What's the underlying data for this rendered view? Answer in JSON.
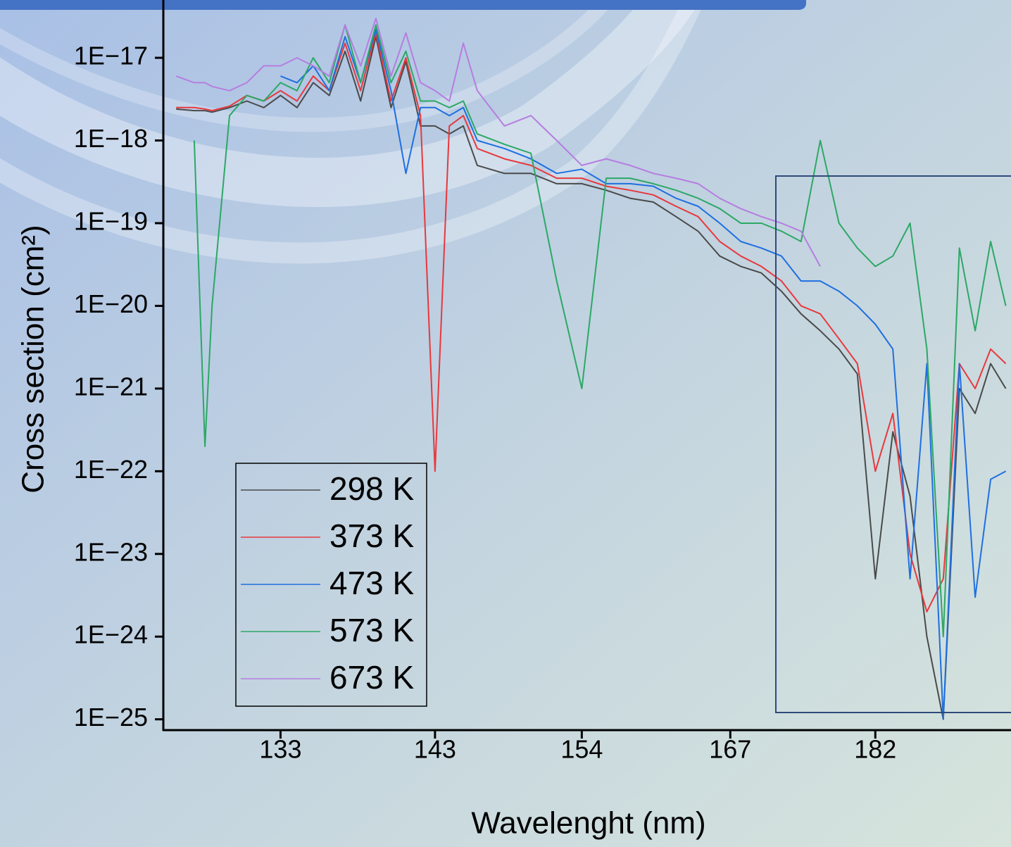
{
  "chart_data": {
    "type": "line",
    "x_label": "Wavelenght (nm)",
    "y_label": "Cross section (cm²)",
    "xscale": "reciprocal",
    "yscale": "log",
    "legend": "lower left",
    "xlim": [
      126.3,
      198.7
    ],
    "xticks": [
      133,
      143,
      154,
      167,
      182
    ],
    "ylim": [
      7.4e-26,
      5e-17
    ],
    "yticks": [
      {
        "value": 1e-17,
        "label": "1E−17"
      },
      {
        "value": 1e-18,
        "label": "1E−18"
      },
      {
        "value": 1e-19,
        "label": "1E−19"
      },
      {
        "value": 1e-20,
        "label": "1E−20"
      },
      {
        "value": 1e-21,
        "label": "1E−21"
      },
      {
        "value": 1e-22,
        "label": "1E−22"
      },
      {
        "value": 1e-23,
        "label": "1E−23"
      },
      {
        "value": 1e-24,
        "label": "1E−24"
      },
      {
        "value": 1e-25,
        "label": "1E−25"
      }
    ],
    "x": [
      127,
      128,
      128.6,
      129,
      130,
      131,
      132,
      133,
      134,
      135,
      136,
      137,
      138,
      139,
      140,
      141,
      142,
      143,
      144,
      145,
      146,
      148,
      150,
      152,
      154,
      156,
      158,
      160,
      162,
      164,
      166,
      168,
      170,
      172,
      174,
      176,
      178,
      180,
      182,
      184,
      186,
      188,
      190,
      192,
      194,
      196,
      198
    ],
    "series": [
      {
        "name": "298 K",
        "color": "#4a4a4a",
        "values": [
          2.4e-18,
          2.3e-18,
          2.3e-18,
          2.2e-18,
          2.5e-18,
          3e-18,
          2.5e-18,
          3.5e-18,
          2.5e-18,
          5e-18,
          3.5e-18,
          1.2e-17,
          3e-18,
          1.8e-17,
          2.5e-18,
          9e-18,
          1.5e-18,
          1.5e-18,
          1.2e-18,
          1.5e-18,
          5e-19,
          4e-19,
          4e-19,
          3e-19,
          3e-19,
          2.5e-19,
          2e-19,
          1.8e-19,
          1.2e-19,
          8e-20,
          4e-20,
          3e-20,
          2.5e-20,
          1.5e-20,
          8e-21,
          5e-21,
          3e-21,
          1.5e-21,
          5e-24,
          3e-22,
          5e-23,
          1e-24,
          1e-25,
          1e-21,
          5e-22,
          2e-21,
          1e-21
        ]
      },
      {
        "name": "373 K",
        "color": "#e8383d",
        "values": [
          2.5e-18,
          2.5e-18,
          2.4e-18,
          2.3e-18,
          2.6e-18,
          3.5e-18,
          3e-18,
          4e-18,
          3e-18,
          6e-18,
          4e-18,
          1.5e-17,
          4e-18,
          2e-17,
          3e-18,
          1e-17,
          2e-18,
          1e-22,
          1.5e-18,
          2e-18,
          8e-19,
          6e-19,
          5e-19,
          3.5e-19,
          3.5e-19,
          2.8e-19,
          2.5e-19,
          2.2e-19,
          1.6e-19,
          1.2e-19,
          6e-20,
          4e-20,
          3e-20,
          2e-20,
          1e-20,
          8e-21,
          4e-21,
          2e-21,
          1e-22,
          5e-22,
          1e-23,
          2e-24,
          5e-24,
          2e-21,
          1e-21,
          3e-21,
          2e-21
        ]
      },
      {
        "name": "473 K",
        "color": "#1f6fe0",
        "values": [
          null,
          null,
          null,
          null,
          null,
          null,
          null,
          6e-18,
          5e-18,
          8e-18,
          4e-18,
          1.8e-17,
          5e-18,
          2.2e-17,
          4e-18,
          4e-19,
          2.5e-18,
          2.5e-18,
          2e-18,
          2.5e-18,
          1e-18,
          8e-19,
          6e-19,
          4e-19,
          4.5e-19,
          3e-19,
          3e-19,
          2.8e-19,
          2e-19,
          1.6e-19,
          1e-19,
          6e-20,
          5e-20,
          4e-20,
          2e-20,
          2e-20,
          1.5e-20,
          1e-20,
          6e-21,
          3e-21,
          5e-24,
          2e-21,
          1e-25,
          2e-21,
          3e-24,
          8e-23,
          1e-22
        ]
      },
      {
        "name": "573 K",
        "color": "#2ca865",
        "values": [
          null,
          1e-18,
          2e-22,
          1e-20,
          2e-18,
          3.5e-18,
          3e-18,
          5e-18,
          4e-18,
          1e-17,
          5e-18,
          2.5e-17,
          5e-18,
          2.5e-17,
          5e-18,
          1.2e-17,
          3e-18,
          3e-18,
          2.5e-18,
          3e-18,
          1.2e-18,
          9e-19,
          7e-19,
          2e-20,
          1e-21,
          3.5e-19,
          3.5e-19,
          3e-19,
          2.5e-19,
          2e-19,
          1.5e-19,
          1e-19,
          1e-19,
          8e-20,
          6e-20,
          1e-18,
          1e-19,
          5e-20,
          3e-20,
          4e-20,
          1e-19,
          3e-21,
          1e-24,
          5e-20,
          5e-21,
          6e-20,
          1e-20
        ]
      },
      {
        "name": "673 K",
        "color": "#b57ee0",
        "values": [
          6e-18,
          5e-18,
          5e-18,
          4.5e-18,
          4e-18,
          5e-18,
          8e-18,
          8e-18,
          1e-17,
          8e-18,
          6e-18,
          2.5e-17,
          8e-18,
          3e-17,
          6e-18,
          2e-17,
          5e-18,
          4e-18,
          3e-18,
          1.5e-17,
          4e-18,
          1.5e-18,
          2e-18,
          1e-18,
          5e-19,
          6e-19,
          5e-19,
          4e-19,
          3.5e-19,
          3e-19,
          2e-19,
          1.5e-19,
          1.2e-19,
          1e-19,
          8e-20,
          3e-20,
          null,
          null,
          null,
          null,
          null,
          null,
          null,
          null,
          null,
          null,
          null
        ]
      }
    ]
  }
}
